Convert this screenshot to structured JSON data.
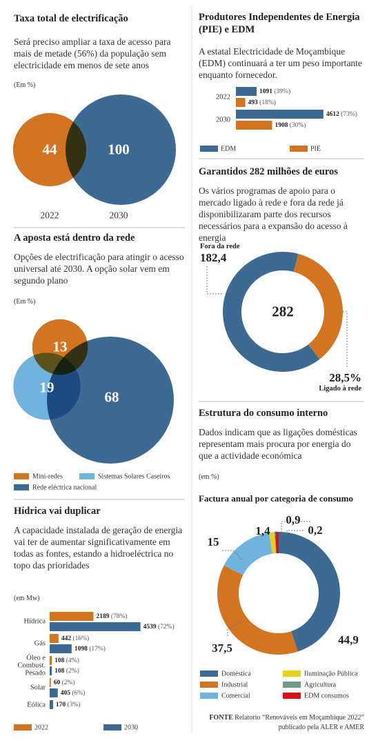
{
  "chart_data": [
    {
      "type": "venn",
      "title": "Taxa total de electrificação",
      "subtitle": "Será preciso ampliar a taxa de acesso para mais de metade (56%) da população sem electricidade em menos de sete anos",
      "unit": "(Em %)",
      "categories": [
        "2022",
        "2030"
      ],
      "values": [
        44,
        100
      ],
      "colors": [
        "#d27420",
        "#3d6a92"
      ]
    },
    {
      "type": "venn",
      "title": "A aposta está dentro da rede",
      "subtitle": "Opções de electrificação para atingir o acesso universal até 2030. A opção solar vem em segundo plano",
      "unit": "(Em %)",
      "categories": [
        "Mini-redes",
        "Sistemas Solares Caseiros",
        "Rede eléctrica nacional"
      ],
      "values": [
        13,
        19,
        68
      ],
      "colors": [
        "#d27420",
        "#6fb4df",
        "#3d6a92"
      ]
    },
    {
      "type": "hbar",
      "title": "Hídrica vai duplicar",
      "subtitle": "A capacidade instalada de geração de energia vai ter de aumentar significativamente em todas as fontes, estando a hidroeléctrica no topo das prioridades",
      "unit": "(em Mw)",
      "categories": [
        "Hídrica",
        "Gás",
        "Óleo e Combust. Pesado",
        "Solar",
        "Eólica"
      ],
      "series": [
        {
          "name": "2022",
          "color": "#d27420",
          "values": [
            2189,
            442,
            108,
            60,
            null
          ],
          "shares": [
            "(78%)",
            "(16%)",
            "(4%)",
            "(2%)",
            null
          ]
        },
        {
          "name": "2030",
          "color": "#3d6a92",
          "values": [
            4539,
            1098,
            108,
            405,
            170
          ],
          "shares": [
            "(72%)",
            "(17%)",
            "(2%)",
            "(6%)",
            "(3%)"
          ]
        }
      ]
    },
    {
      "type": "hbar",
      "title": "Produtores Independentes de Energia (PIE) e EDM",
      "subtitle": "A estatal Electricidade de Moçambique (EDM) continuará a ter um peso importante enquanto fornecedor.",
      "categories": [
        "2022",
        "2030"
      ],
      "series": [
        {
          "name": "EDM",
          "color": "#3d6a92",
          "values": [
            1091,
            4612
          ],
          "shares": [
            "(39%)",
            "(73%)"
          ]
        },
        {
          "name": "PIE",
          "color": "#d27420",
          "values": [
            493,
            1908
          ],
          "shares": [
            "(18%)",
            "(30%)"
          ]
        }
      ]
    },
    {
      "type": "donut",
      "title": "Garantidos 282 milhões de euros",
      "subtitle": "Os vários programas de apoio para o mercado ligado à rede e fora da rede já disponibilizaram parte dos recursos necessários para a expansão do acesso à energia",
      "total": 282,
      "categories": [
        "Fora da rede",
        "Ligado à rede"
      ],
      "values": [
        182.4,
        28.5
      ],
      "value_labels": [
        "182,4",
        "28,5%"
      ],
      "colors": [
        "#3d6a92",
        "#d27420"
      ]
    },
    {
      "type": "donut",
      "title": "Estrutura do consumo interno",
      "subtitle": "Dados indicam que as ligações domésticas representam mais procura por energia do que a actividade económica",
      "unit": "(em %)",
      "chart_title": "Factura anual por categoria de consumo",
      "categories": [
        "Doméstica",
        "Industrial",
        "Comercial",
        "Iluminação Pública",
        "Agricultura",
        "EDM consumos"
      ],
      "values": [
        44.9,
        37.5,
        15,
        1.4,
        0.2,
        0.9
      ],
      "value_labels": [
        "44,9",
        "37,5",
        "15",
        "1,4",
        "0,2",
        "0,9"
      ],
      "colors": [
        "#3d6a92",
        "#d27420",
        "#6fb4df",
        "#e8cf1a",
        "#6e9b8c",
        "#d8121b"
      ]
    }
  ],
  "source": {
    "label": "FONTE",
    "text": "Relatorio “Renováveis em Moçambique 2022” publicado pela ALER e AMER"
  }
}
